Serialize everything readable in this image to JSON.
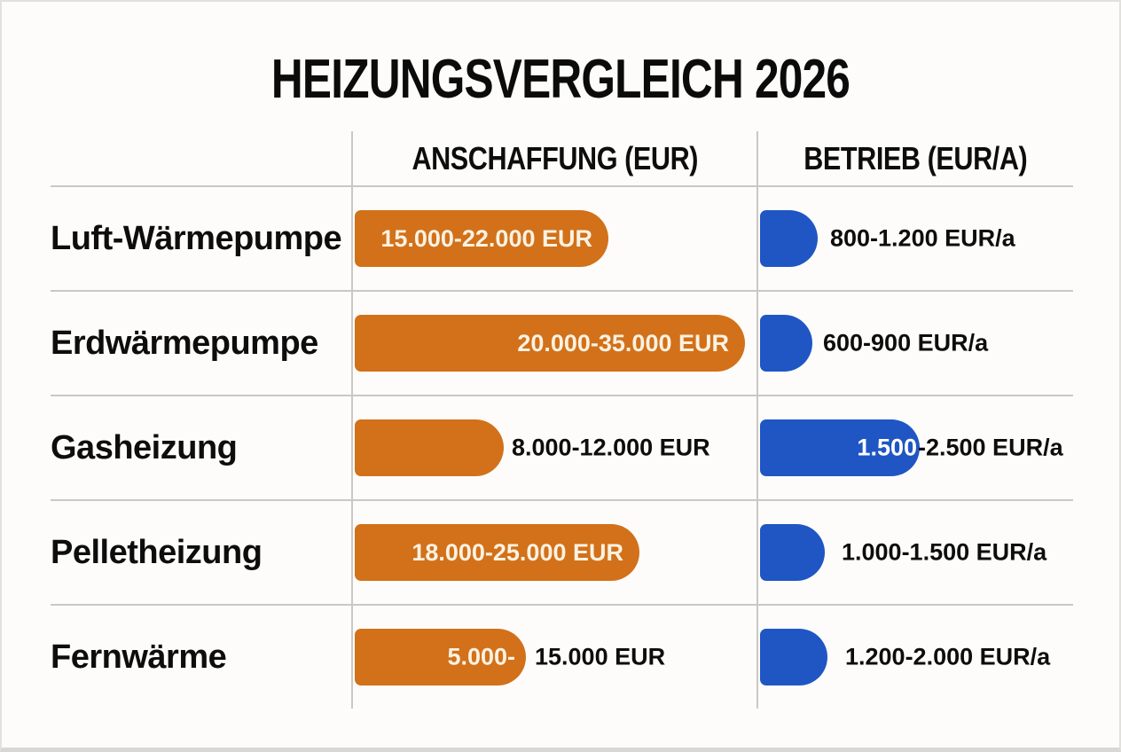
{
  "title": "HEIZUNGSVERGLEICH 2026",
  "columns": {
    "acquisition": "ANSCHAFFUNG (EUR)",
    "operation": "BETRIEB (EUR/A)"
  },
  "colors": {
    "acquisition_bar": "#d2711a",
    "operation_bar": "#1f56c4",
    "text": "#0d0d0d",
    "bar_text_light": "#fbf2e2",
    "grid_line": "#c9c8c5",
    "background": "#fdfcfa"
  },
  "rows": [
    {
      "label": "Luft-Wärmepumpe",
      "acq_bar_text": "15.000-22.000 EUR",
      "acq_split_in": "",
      "acq_out": "",
      "op_split_in": "",
      "op_out": "800-1.200 EUR/a"
    },
    {
      "label": "Erdwärmepumpe",
      "acq_bar_text": "20.000-35.000 EUR",
      "acq_split_in": "",
      "acq_out": "",
      "op_split_in": "",
      "op_out": "600-900 EUR/a"
    },
    {
      "label": "Gasheizung",
      "acq_bar_text": "",
      "acq_split_in": "",
      "acq_out": "8.000-12.000 EUR",
      "op_split_in": "1.500",
      "op_out": "-2.500 EUR/a"
    },
    {
      "label": "Pelletheizung",
      "acq_bar_text": "18.000-25.000 EUR",
      "acq_split_in": "",
      "acq_out": "",
      "op_split_in": "",
      "op_out": "1.000-1.500 EUR/a"
    },
    {
      "label": "Fernwärme",
      "acq_bar_text": "",
      "acq_split_in": "5.000-",
      "acq_out": "15.000 EUR",
      "op_split_in": "",
      "op_out": "1.200-2.000 EUR/a"
    }
  ],
  "chart_data": {
    "type": "bar",
    "orientation": "horizontal",
    "title": "HEIZUNGSVERGLEICH 2026",
    "categories": [
      "Luft-Wärmepumpe",
      "Erdwärmepumpe",
      "Gasheizung",
      "Pelletheizung",
      "Fernwärme"
    ],
    "series": [
      {
        "name": "ANSCHAFFUNG (EUR)",
        "unit": "EUR",
        "color": "#d2711a",
        "ranges": [
          [
            15000,
            22000
          ],
          [
            20000,
            35000
          ],
          [
            8000,
            12000
          ],
          [
            18000,
            25000
          ],
          [
            5000,
            15000
          ]
        ],
        "labels": [
          "15.000-22.000 EUR",
          "20.000-35.000 EUR",
          "8.000-12.000 EUR",
          "18.000-25.000 EUR",
          "5.000- 15.000 EUR"
        ]
      },
      {
        "name": "BETRIEB (EUR/A)",
        "unit": "EUR/a",
        "color": "#1f56c4",
        "ranges": [
          [
            800,
            1200
          ],
          [
            600,
            900
          ],
          [
            1500,
            2500
          ],
          [
            1000,
            1500
          ],
          [
            1200,
            2000
          ]
        ],
        "labels": [
          "800-1.200 EUR/a",
          "600-900 EUR/a",
          "1.500-2.500 EUR/a",
          "1.000-1.500 EUR/a",
          "1.200-2.000 EUR/a"
        ]
      }
    ],
    "legend": false,
    "grid": false,
    "bar_length_basis": "upper bound of range, scaled within each column"
  }
}
